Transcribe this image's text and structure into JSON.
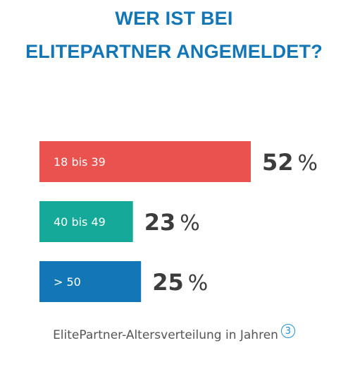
{
  "title_lines": [
    "WER IST BEI",
    "ELITEPARTNER ANGEMELDET?"
  ],
  "colors": {
    "title": "#1377b7",
    "footnote": "#1f8fcf",
    "text_dark": "#3c3c3c",
    "caption": "#555555"
  },
  "chart_data": {
    "type": "bar",
    "orientation": "horizontal",
    "categories": [
      "18 bis 39",
      "40 bis 49",
      "> 50"
    ],
    "values": [
      52,
      23,
      25
    ],
    "value_unit": "%",
    "bar_colors": [
      "#ea524f",
      "#15a99a",
      "#1377b7"
    ],
    "grid": false,
    "legend": "none"
  },
  "caption": {
    "text": "ElitePartner-Altersverteilung in Jahren",
    "footnote_ref": "3"
  }
}
